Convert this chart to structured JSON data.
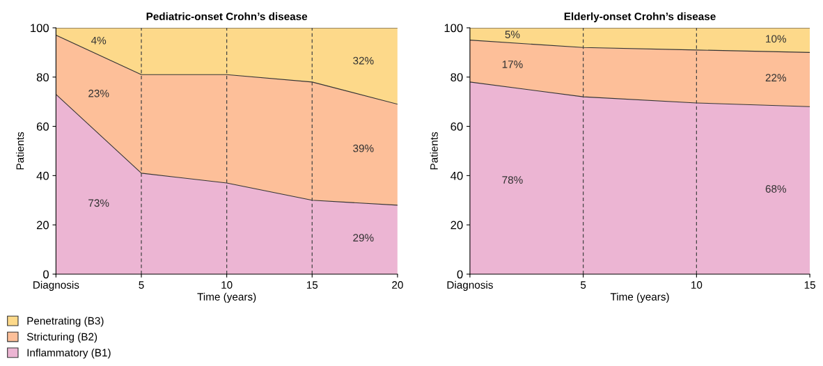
{
  "chart_data": [
    {
      "type": "area",
      "stacked": true,
      "title": "Pediatric-onset Crohn’s disease",
      "xlabel": "Time (years)",
      "ylabel": "Patients",
      "x": [
        0,
        5,
        10,
        15,
        20
      ],
      "series": [
        {
          "name": "Inflammatory (B1)",
          "color": "#ecb5d3",
          "values": [
            73,
            41,
            37,
            30,
            28
          ]
        },
        {
          "name": "Stricturing (B2)",
          "color": "#fdbf99",
          "values": [
            24,
            40,
            44,
            48,
            41
          ]
        },
        {
          "name": "Penetrating (B3)",
          "color": "#fdd98a",
          "values": [
            3,
            19,
            19,
            22,
            31
          ]
        }
      ],
      "xlim": [
        0,
        20
      ],
      "xticks": [
        {
          "value": 0,
          "label": "Diagnosis"
        },
        5,
        10,
        15,
        20
      ],
      "ylim": [
        0,
        100
      ],
      "yticks": [
        0,
        20,
        40,
        60,
        80,
        100
      ],
      "ref_lines": [
        {
          "axis": "x",
          "value": 5,
          "color": "#444444",
          "line_style": "dashed"
        },
        {
          "axis": "x",
          "value": 10,
          "color": "#444444",
          "line_style": "dashed"
        },
        {
          "axis": "x",
          "value": 15,
          "color": "#444444",
          "line_style": "dashed"
        }
      ],
      "annotations": [
        "4%",
        "23%",
        "73%",
        "32%",
        "39%",
        "29%"
      ],
      "legend": "bottom left",
      "grid": false
    },
    {
      "type": "area",
      "stacked": true,
      "title": "Elderly-onset Crohn’s disease",
      "xlabel": "Time (years)",
      "ylabel": "Patients",
      "x": [
        0,
        5,
        10,
        15
      ],
      "series": [
        {
          "color": "#ecb5d3",
          "values": [
            78,
            72,
            69.5,
            68
          ]
        },
        {
          "color": "#fdbf99",
          "values": [
            17,
            20,
            21.5,
            22
          ]
        },
        {
          "color": "#fdd98a",
          "values": [
            5,
            8,
            9,
            10
          ]
        }
      ],
      "xlim": [
        0,
        15
      ],
      "xticks": [
        {
          "value": 0,
          "label": "Diagnosis"
        },
        5,
        10,
        15
      ],
      "ylim": [
        0,
        100
      ],
      "yticks": [
        0,
        20,
        40,
        60,
        80,
        100
      ],
      "ref_lines": [
        {
          "axis": "x",
          "value": 5,
          "color": "#444444",
          "line_style": "dashed"
        },
        {
          "axis": "x",
          "value": 10,
          "color": "#444444",
          "line_style": "dashed"
        }
      ],
      "annotations": [
        "5%",
        "17%",
        "78%",
        "10%",
        "22%",
        "68%"
      ],
      "grid": false
    }
  ]
}
